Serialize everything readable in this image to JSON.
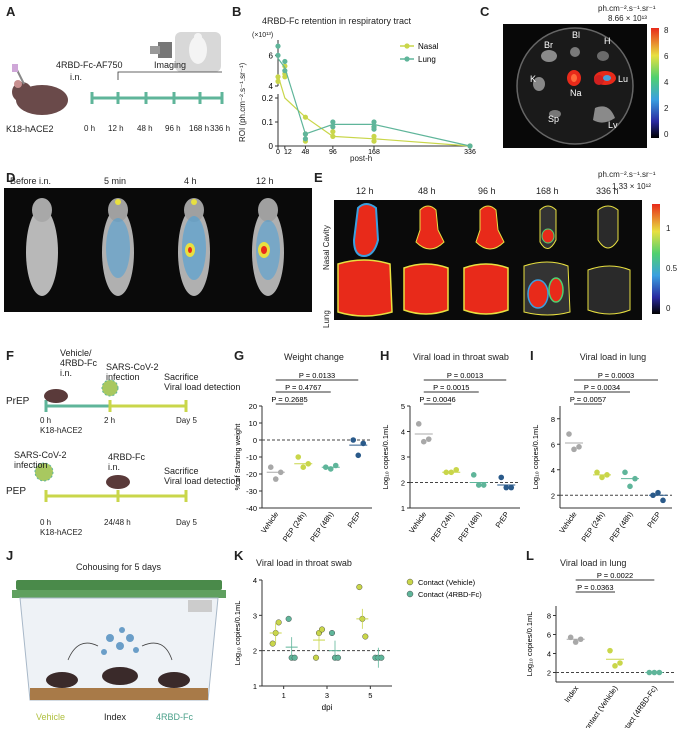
{
  "panel_labels": [
    "A",
    "B",
    "C",
    "D",
    "E",
    "F",
    "G",
    "H",
    "I",
    "J",
    "K",
    "L"
  ],
  "panel_a": {
    "agent": "4RBD-Fc-AF750",
    "route": "i.n.",
    "imaging": "Imaging",
    "mouse": "K18-hACE2",
    "timepoints": [
      "0 h",
      "12 h",
      "48 h",
      "96 h",
      "168 h",
      "336 h"
    ]
  },
  "panel_b": {
    "exponent": "(×10¹³)",
    "ylabel": "ROI (ph.cm⁻².s⁻¹.sr⁻¹)",
    "xlabel": "post-h"
  },
  "panel_c": {
    "unit": "ph.cm⁻².s⁻¹.sr⁻¹",
    "max": "8.66 × 10¹³",
    "scale_ticks": [
      "8",
      "6",
      "4",
      "2",
      "0"
    ],
    "organs": [
      "Br",
      "Bl",
      "H",
      "K",
      "Na",
      "Lu",
      "Sp",
      "Lv"
    ]
  },
  "panel_d": {
    "labels": [
      "Before i.n.",
      "5 min",
      "4 h",
      "12 h"
    ]
  },
  "panel_e": {
    "unit": "ph.cm⁻².s⁻¹.sr⁻¹",
    "max": "1.33 × 10¹²",
    "scale_ticks": [
      "1",
      "0.5",
      "0"
    ],
    "times": [
      "12 h",
      "48 h",
      "96 h",
      "168 h",
      "336 h"
    ],
    "rows": [
      "Nasal Cavity",
      "Lung"
    ]
  },
  "panel_f": {
    "prep_label": "PrEP",
    "pep_label": "PEP",
    "prep_treat": "Vehicle/\n4RBD-Fc\ni.n.",
    "infection": "SARS-CoV-2\ninfection",
    "sacrifice": "Sacrifice\nViral load detection",
    "pep_treat": "4RBD-Fc\ni.n.",
    "prep_times": [
      "0 h",
      "2 h",
      "Day 5"
    ],
    "pep_times": [
      "0 h",
      "24/48 h",
      "Day 5"
    ],
    "mouse": "K18-hACE2"
  },
  "panel_j": {
    "title": "Cohousing for 5 days",
    "labels": [
      "Vehicle",
      "Index",
      "4RBD-Fc"
    ]
  },
  "chart_data": [
    {
      "type": "line",
      "panel": "B",
      "title": "4RBD-Fc retention in respiratory tract",
      "xlabel": "post-h",
      "ylabel": "ROI (ph.cm⁻².s⁻¹.sr⁻¹)",
      "x_ticks": [
        0,
        12,
        48,
        96,
        168,
        336
      ],
      "y_ticks": [
        "0",
        "0.1",
        "0.2",
        "4",
        "6"
      ],
      "series": [
        {
          "name": "Nasal",
          "color": "#c9d64a",
          "x": [
            0,
            12,
            48,
            96,
            168,
            336
          ],
          "y": [
            4.7,
            0.2,
            0.12,
            0.04,
            0.03,
            0.0
          ],
          "points": [
            [
              0,
              4.6
            ],
            [
              0,
              4.3
            ],
            [
              12,
              5.3
            ],
            [
              12,
              4.6
            ],
            [
              12,
              4.8
            ],
            [
              48,
              0.12
            ],
            [
              48,
              0.05
            ],
            [
              48,
              0.02
            ],
            [
              96,
              0.06
            ],
            [
              96,
              0.04
            ],
            [
              168,
              0.08
            ],
            [
              168,
              0.04
            ],
            [
              168,
              0.02
            ],
            [
              336,
              0.0
            ]
          ]
        },
        {
          "name": "Lung",
          "color": "#5fb59a",
          "x": [
            0,
            12,
            48,
            96,
            168,
            336
          ],
          "y": [
            5.8,
            5.2,
            0.05,
            0.09,
            0.09,
            0.0
          ],
          "points": [
            [
              0,
              6.6
            ],
            [
              0,
              6.0
            ],
            [
              12,
              5.6
            ],
            [
              12,
              5.0
            ],
            [
              48,
              0.05
            ],
            [
              48,
              0.03
            ],
            [
              96,
              0.1
            ],
            [
              96,
              0.08
            ],
            [
              168,
              0.1
            ],
            [
              168,
              0.08
            ],
            [
              168,
              0.07
            ],
            [
              336,
              0.0
            ]
          ]
        }
      ]
    },
    {
      "type": "scatter",
      "panel": "G",
      "title": "Weight change",
      "ylabel": "% of Starting weight",
      "categories": [
        "Vehicle",
        "PEP (24h)",
        "PEP (48h)",
        "PrEP"
      ],
      "ylim": [
        -40,
        20
      ],
      "y_ticks": [
        -40,
        -30,
        -20,
        -10,
        0,
        10,
        20
      ],
      "colors": [
        "#a8a8a8",
        "#c9d64a",
        "#5fb59a",
        "#2a5a8a"
      ],
      "values": [
        [
          -16,
          -23,
          -19
        ],
        [
          -10,
          -16,
          -14
        ],
        [
          -16,
          -17,
          -15
        ],
        [
          0,
          -9,
          -2
        ]
      ],
      "means": [
        -19,
        -14,
        -16,
        -3
      ],
      "comparisons": [
        {
          "from": 0,
          "to": 1,
          "p": "P = 0.2685"
        },
        {
          "from": 0,
          "to": 2,
          "p": "P = 0.4767"
        },
        {
          "from": 0,
          "to": 3,
          "p": "P = 0.0133"
        }
      ]
    },
    {
      "type": "scatter",
      "panel": "H",
      "title": "Viral load in throat swab",
      "ylabel": "Log₁₀ copies/0.1mL",
      "categories": [
        "Vehicle",
        "PEP (24h)",
        "PEP (48h)",
        "PrEP"
      ],
      "ylim": [
        1,
        5
      ],
      "y_ticks": [
        1,
        2,
        3,
        4,
        5
      ],
      "baseline": 2,
      "colors": [
        "#a8a8a8",
        "#c9d64a",
        "#5fb59a",
        "#2a5a8a"
      ],
      "values": [
        [
          4.3,
          3.6,
          3.7
        ],
        [
          2.4,
          2.4,
          2.5
        ],
        [
          2.3,
          1.9,
          1.9
        ],
        [
          2.2,
          1.8,
          1.8
        ]
      ],
      "means": [
        3.9,
        2.4,
        2.0,
        1.9
      ],
      "comparisons": [
        {
          "from": 0,
          "to": 1,
          "p": "P = 0.0046"
        },
        {
          "from": 0,
          "to": 2,
          "p": "P = 0.0015"
        },
        {
          "from": 0,
          "to": 3,
          "p": "P = 0.0013"
        }
      ]
    },
    {
      "type": "scatter",
      "panel": "I",
      "title": "Viral load in lung",
      "ylabel": "Log₁₀ copies/0.1mL",
      "categories": [
        "Vehicle",
        "PEP (24h)",
        "PEP (48h)",
        "PrEP"
      ],
      "ylim": [
        1,
        9
      ],
      "y_ticks": [
        2,
        4,
        6,
        8
      ],
      "baseline": 2,
      "colors": [
        "#a8a8a8",
        "#c9d64a",
        "#5fb59a",
        "#2a5a8a"
      ],
      "values": [
        [
          6.8,
          5.6,
          5.8
        ],
        [
          3.8,
          3.4,
          3.6
        ],
        [
          3.8,
          2.7,
          3.3
        ],
        [
          2.0,
          2.2,
          1.6
        ]
      ],
      "means": [
        6.1,
        3.6,
        3.3,
        2.0
      ],
      "comparisons": [
        {
          "from": 0,
          "to": 1,
          "p": "P = 0.0057"
        },
        {
          "from": 0,
          "to": 2,
          "p": "P = 0.0034"
        },
        {
          "from": 0,
          "to": 3,
          "p": "P = 0.0003"
        }
      ]
    },
    {
      "type": "scatter",
      "panel": "K",
      "title": "Viral load in throat swab",
      "ylabel": "Log₁₀ copies/0.1mL",
      "xlabel": "dpi",
      "categories": [
        "1",
        "3",
        "5"
      ],
      "ylim": [
        1,
        4
      ],
      "y_ticks": [
        1,
        2,
        3,
        4
      ],
      "baseline": 2,
      "series": [
        {
          "name": "Contact (Vehicle)",
          "color": "#c9d64a",
          "values": [
            [
              2.2,
              2.5,
              2.8
            ],
            [
              1.8,
              2.5,
              2.6
            ],
            [
              3.8,
              2.9,
              2.4
            ]
          ],
          "mean": [
            2.5,
            2.3,
            2.9
          ]
        },
        {
          "name": "Contact (4RBD-Fc)",
          "color": "#5fb59a",
          "values": [
            [
              2.9,
              1.8,
              1.8
            ],
            [
              2.5,
              1.8,
              1.8
            ],
            [
              1.8,
              1.8,
              1.8
            ]
          ],
          "mean": [
            2.1,
            2.0,
            1.8
          ]
        }
      ]
    },
    {
      "type": "scatter",
      "panel": "L",
      "title": "Viral load in lung",
      "ylabel": "Log₁₀ copies/0.1mL",
      "categories": [
        "Index",
        "Contact (Vehicle)",
        "Contact (4RBD-Fc)"
      ],
      "ylim": [
        1,
        9
      ],
      "y_ticks": [
        2,
        4,
        6,
        8
      ],
      "baseline": 2,
      "colors": [
        "#a8a8a8",
        "#c9d64a",
        "#5fb59a"
      ],
      "values": [
        [
          5.7,
          5.2,
          5.5
        ],
        [
          4.3,
          2.7,
          3.0
        ],
        [
          2.0,
          2.0,
          2.0
        ]
      ],
      "means": [
        5.5,
        3.4,
        2.0
      ],
      "comparisons": [
        {
          "from": 0,
          "to": 1,
          "p": "P = 0.0363"
        },
        {
          "from": 0,
          "to": 2,
          "p": "P = 0.0022"
        }
      ]
    }
  ]
}
